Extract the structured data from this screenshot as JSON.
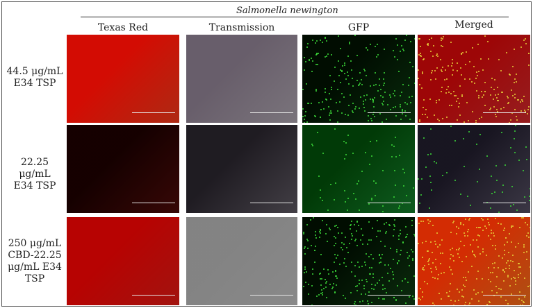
{
  "figure": {
    "species": "Salmonella newington",
    "columns": [
      "Texas Red",
      "Transmission",
      "GFP",
      "Merged"
    ],
    "rows": [
      {
        "label": [
          "44.5 μg/mL",
          "E34 TSP"
        ]
      },
      {
        "label": [
          "22.25 μg/mL",
          "E34 TSP"
        ]
      },
      {
        "label": [
          "250 μg/mL",
          "CBD-22.25",
          "μg/mL E34",
          "TSP"
        ]
      }
    ]
  },
  "colors": {
    "texas_red": [
      "#e8381a",
      "#4a0a08",
      "#d81a14"
    ],
    "transmission": [
      "#a39ba5",
      "#59545d",
      "#b7b7b7"
    ],
    "gfp": [
      "#0c3a10",
      "#137a2a",
      "#0f3a12"
    ],
    "merged": [
      "#c8282a",
      "#4f4a5c",
      "#e86a1a"
    ]
  }
}
